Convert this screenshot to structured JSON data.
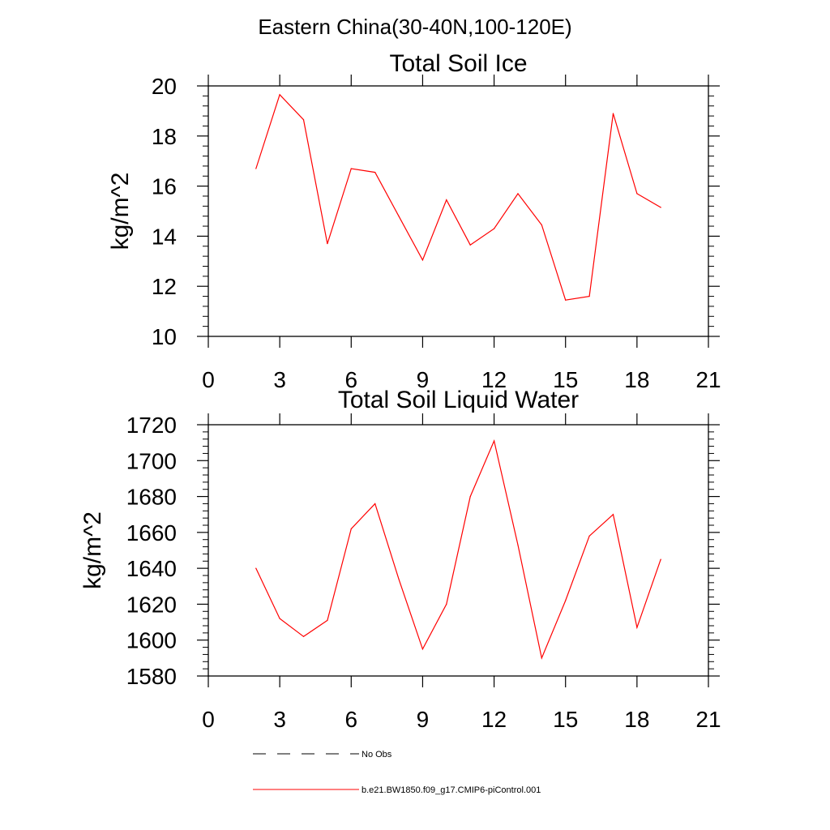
{
  "title": "Eastern China(30-40N,100-120E)",
  "legend": {
    "entries": [
      {
        "label": "No Obs",
        "color": "#000000",
        "dash": true
      },
      {
        "label": "b.e21.BW1850.f09_g17.CMIP6-piControl.001",
        "color": "#ff0000",
        "dash": false
      }
    ]
  },
  "chart_data": [
    {
      "type": "line",
      "title": "Total Soil Ice",
      "ylabel": "kg/m^2",
      "xlim": [
        0,
        21
      ],
      "ylim": [
        10,
        20
      ],
      "xticks": [
        0,
        3,
        6,
        9,
        12,
        15,
        18,
        21
      ],
      "yticks": [
        10,
        12,
        14,
        16,
        18,
        20
      ],
      "series": [
        {
          "color": "#ff0000",
          "x": [
            2,
            3,
            4,
            5,
            6,
            7,
            8,
            9,
            10,
            11,
            12,
            13,
            14,
            15,
            16,
            17,
            18,
            19
          ],
          "values": [
            16.7,
            19.65,
            18.65,
            13.7,
            16.7,
            16.55,
            14.8,
            13.05,
            15.45,
            13.65,
            14.3,
            15.7,
            14.45,
            11.45,
            11.6,
            18.9,
            15.7,
            15.15
          ]
        }
      ]
    },
    {
      "type": "line",
      "title": "Total Soil Liquid Water",
      "ylabel": "kg/m^2",
      "xlim": [
        0,
        21
      ],
      "ylim": [
        1580,
        1720
      ],
      "xticks": [
        0,
        3,
        6,
        9,
        12,
        15,
        18,
        21
      ],
      "yticks": [
        1580,
        1600,
        1620,
        1640,
        1660,
        1680,
        1700,
        1720
      ],
      "series": [
        {
          "color": "#ff0000",
          "x": [
            2,
            3,
            4,
            5,
            6,
            7,
            8,
            9,
            10,
            11,
            12,
            13,
            14,
            15,
            16,
            17,
            18,
            19
          ],
          "values": [
            1640,
            1612,
            1602,
            1611,
            1662,
            1676,
            1634,
            1595,
            1620,
            1680,
            1711,
            1653,
            1590,
            1622,
            1658,
            1670,
            1607,
            1645
          ]
        }
      ]
    }
  ]
}
